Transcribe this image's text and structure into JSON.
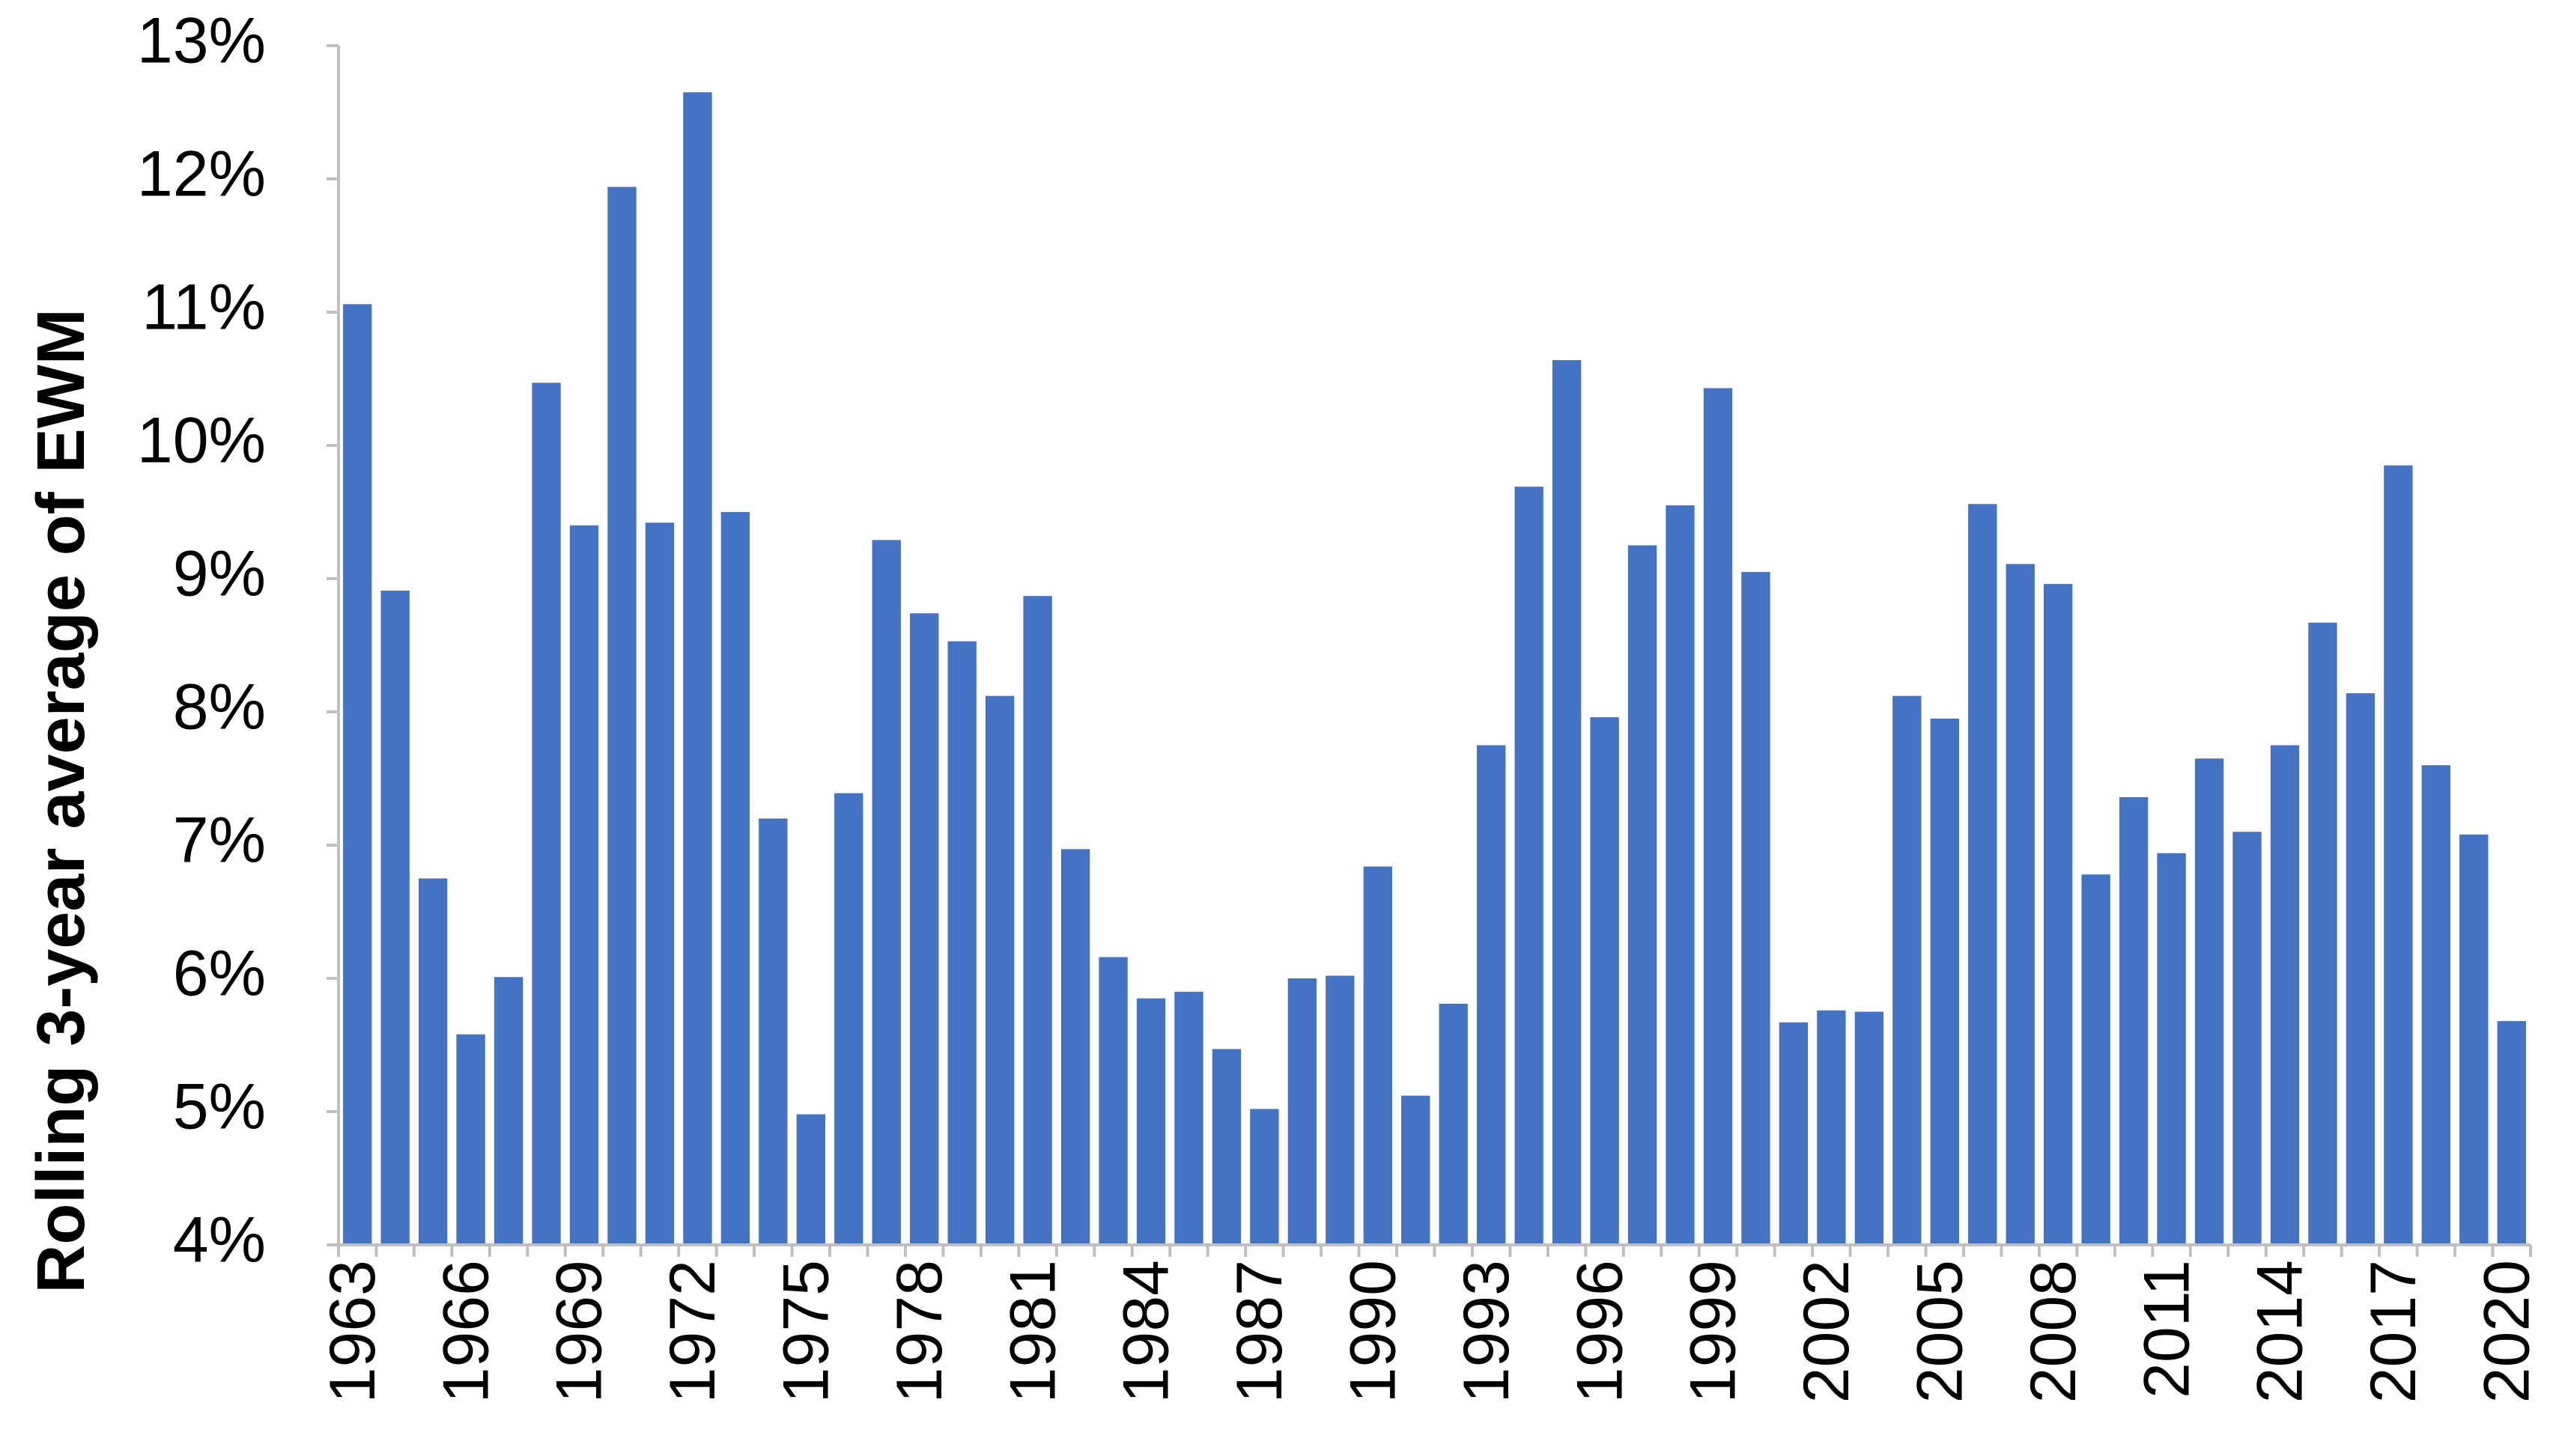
{
  "chart_data": {
    "type": "bar",
    "y_label": "Rolling 3-year average of EWM",
    "categories": [
      "1963",
      null,
      null,
      "1966",
      null,
      null,
      "1969",
      null,
      null,
      "1972",
      null,
      null,
      "1975",
      null,
      null,
      "1978",
      null,
      null,
      "1981",
      null,
      null,
      "1984",
      null,
      null,
      "1987",
      null,
      null,
      "1990",
      null,
      null,
      "1993",
      null,
      null,
      "1996",
      null,
      null,
      "1999",
      null,
      null,
      "2002",
      null,
      null,
      "2005",
      null,
      null,
      "2008",
      null,
      null,
      "2011",
      null,
      null,
      "2014",
      null,
      null,
      "2017",
      null,
      null,
      "2020"
    ],
    "values": [
      11.06,
      8.91,
      6.75,
      5.58,
      6.01,
      10.47,
      9.4,
      11.94,
      9.42,
      12.65,
      9.5,
      7.2,
      4.98,
      7.39,
      9.29,
      8.74,
      8.53,
      8.12,
      8.87,
      6.97,
      6.16,
      5.85,
      5.9,
      5.47,
      5.02,
      6.0,
      6.02,
      6.84,
      5.12,
      5.81,
      7.75,
      9.69,
      10.64,
      7.96,
      9.25,
      9.55,
      10.43,
      9.05,
      5.67,
      5.76,
      5.75,
      8.12,
      7.95,
      9.56,
      9.11,
      8.96,
      6.78,
      7.36,
      6.94,
      7.65,
      7.1,
      7.75,
      8.67,
      8.14,
      9.85,
      7.6,
      7.08,
      5.68
    ],
    "color": "#4472c4",
    "ylim": [
      4,
      13
    ],
    "yticks": [
      {
        "value": 4,
        "label": "4%"
      },
      {
        "value": 5,
        "label": "5%"
      },
      {
        "value": 6,
        "label": "6%"
      },
      {
        "value": 7,
        "label": "7%"
      },
      {
        "value": 8,
        "label": "8%"
      },
      {
        "value": 9,
        "label": "9%"
      },
      {
        "value": 10,
        "label": "10%"
      },
      {
        "value": 11,
        "label": "11%"
      },
      {
        "value": 12,
        "label": "12%"
      },
      {
        "value": 13,
        "label": "13%"
      }
    ],
    "grid": false
  }
}
